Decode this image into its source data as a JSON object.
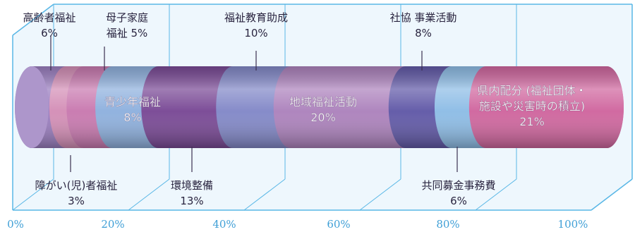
{
  "chart_data": {
    "type": "bar",
    "style": "3d-stacked-cylinder",
    "unit": "%",
    "x_ticks": [
      "0%",
      "20%",
      "40%",
      "60%",
      "80%",
      "100%"
    ],
    "xlim": [
      0,
      100
    ],
    "grid": true,
    "segments": [
      {
        "label_lines": [
          "高齢者福祉",
          "6%"
        ],
        "value": 6,
        "color": "#9b7fc0",
        "label_pos": "above",
        "text": "dark"
      },
      {
        "label_lines": [
          "障がい(児)者福祉",
          "3%"
        ],
        "value": 3,
        "color": "#d48fb7",
        "label_pos": "below",
        "text": "dark"
      },
      {
        "label_lines": [
          "母子家庭",
          "福祉 5%"
        ],
        "value": 5,
        "color": "#c97ab0",
        "label_pos": "above",
        "text": "dark"
      },
      {
        "label_lines": [
          "青少年福祉",
          "8%"
        ],
        "value": 8,
        "color": "#8fb1de",
        "label_pos": "inside",
        "text": "light"
      },
      {
        "label_lines": [
          "環境整備",
          "13%"
        ],
        "value": 13,
        "color": "#7a4a96",
        "label_pos": "below",
        "text": "dark"
      },
      {
        "label_lines": [
          "福祉教育助成",
          "10%"
        ],
        "value": 10,
        "color": "#8389c8",
        "label_pos": "above",
        "text": "dark"
      },
      {
        "label_lines": [
          "地域福祉活動",
          "20%"
        ],
        "value": 20,
        "color": "#ad83bd",
        "label_pos": "inside",
        "text": "light"
      },
      {
        "label_lines": [
          "社協 事業活動",
          "8%"
        ],
        "value": 8,
        "color": "#625aa8",
        "label_pos": "above",
        "text": "dark"
      },
      {
        "label_lines": [
          "共同募金事務費",
          "6%"
        ],
        "value": 6,
        "color": "#8ebde6",
        "label_pos": "below",
        "text": "dark"
      },
      {
        "label_lines": [
          "県内配分 (福祉団体・",
          "施設や災害時の積立)",
          "21%"
        ],
        "value": 21,
        "color": "#d0679f",
        "label_pos": "inside",
        "text": "light"
      }
    ]
  }
}
